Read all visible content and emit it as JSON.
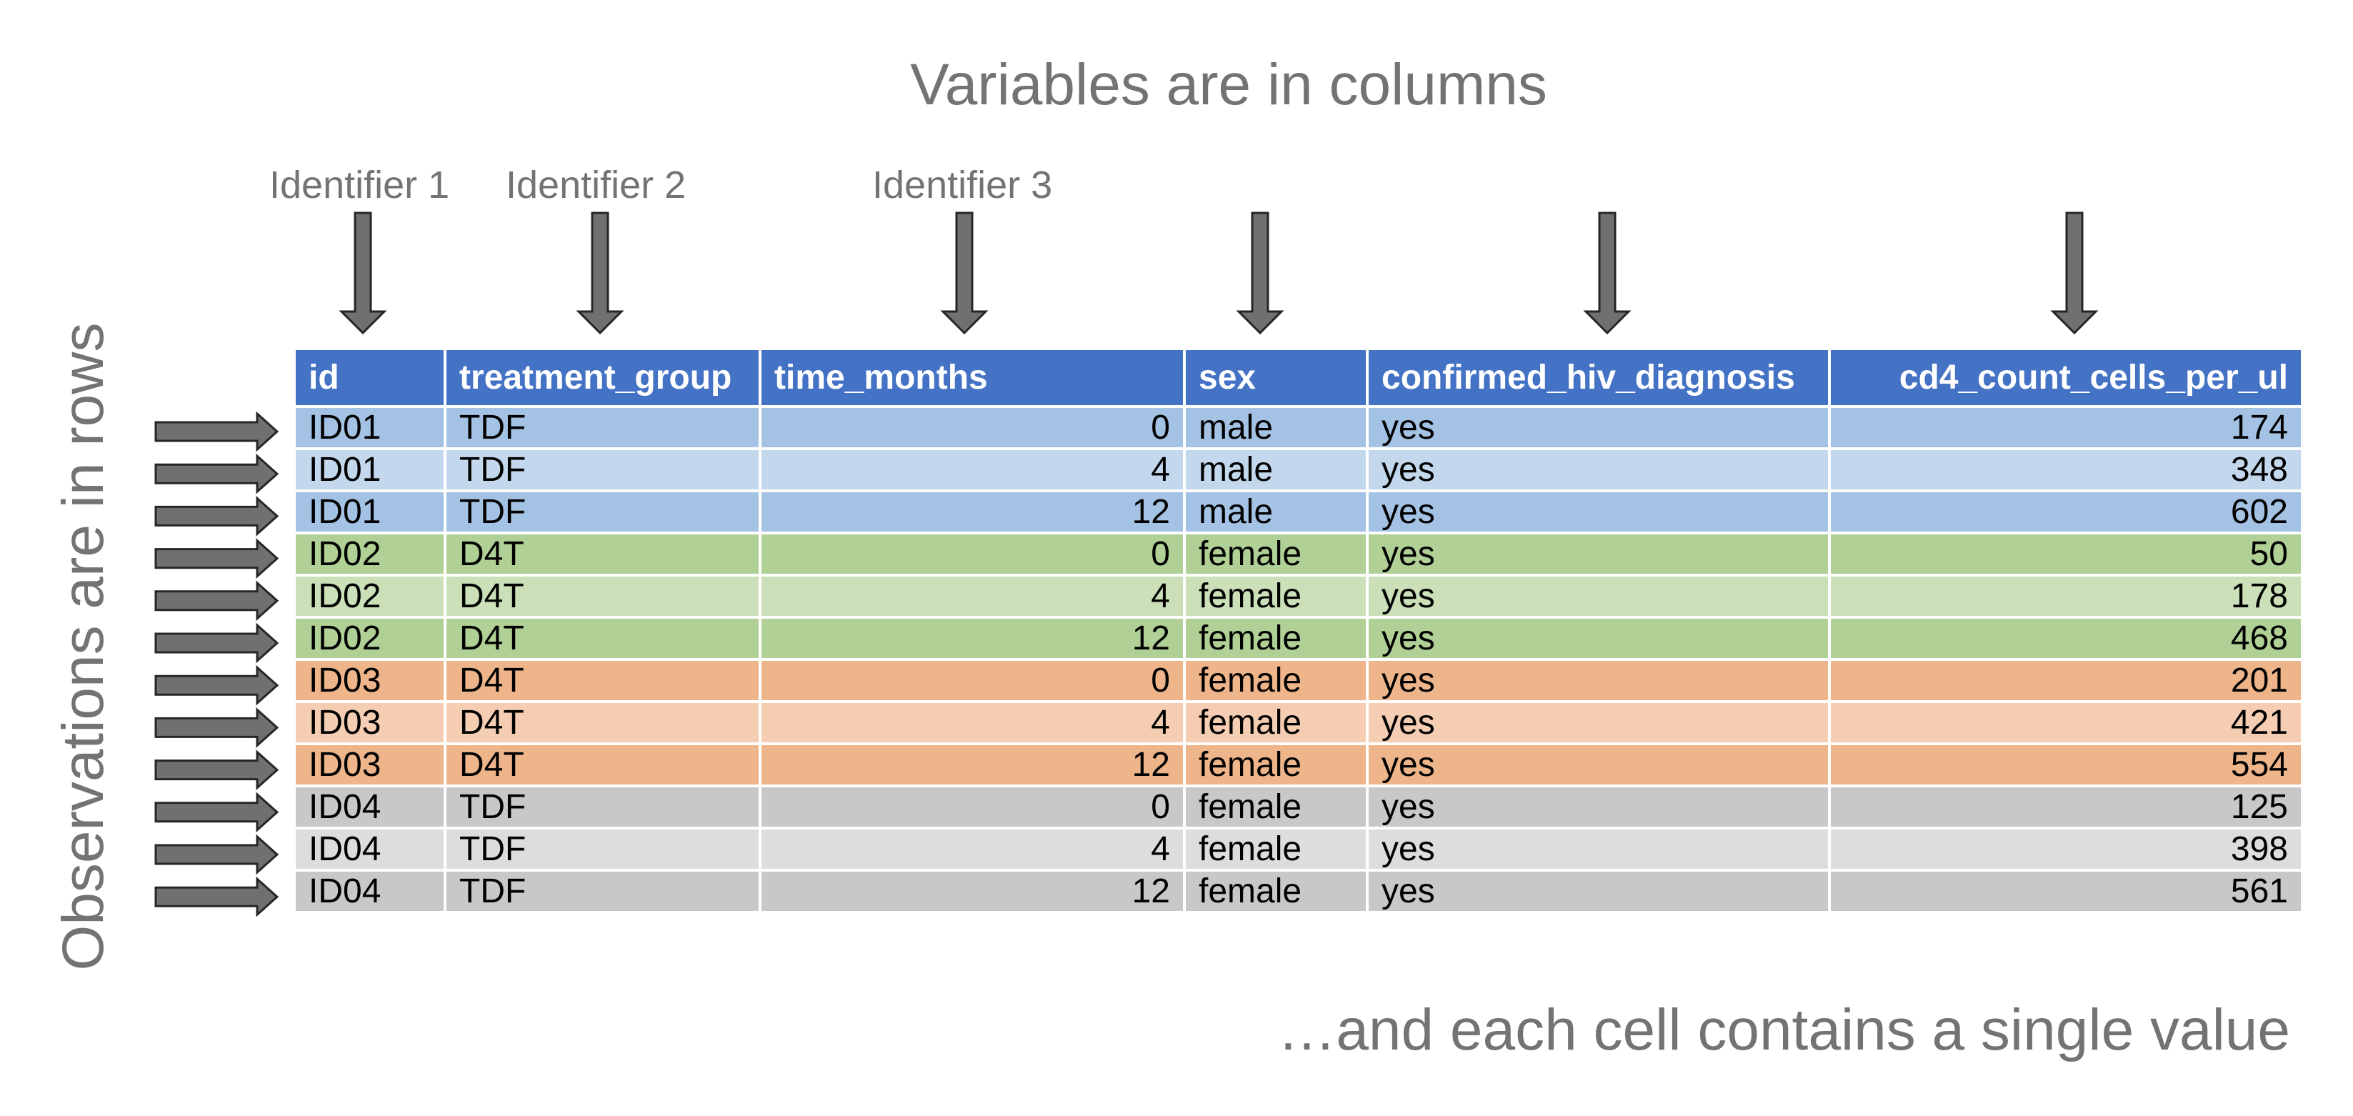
{
  "title": "Variables are in columns",
  "identifier_labels": [
    "Identifier 1",
    "Identifier 2",
    "Identifier 3"
  ],
  "rows_label": "Observations are in rows",
  "footer": "…and each cell contains a single value",
  "colors": {
    "header": "#4472c4",
    "arrow_fill": "#707070",
    "label_gray": "#737373",
    "id01": [
      "#a4c2e4",
      "#c4d8ed"
    ],
    "id02": [
      "#b0d095",
      "#cbe0b8"
    ],
    "id03": [
      "#eeb48a",
      "#f4cdb2"
    ],
    "id04": [
      "#c8c8c8",
      "#dddddd"
    ]
  },
  "table": {
    "columns": [
      "id",
      "treatment_group",
      "time_months",
      "sex",
      "confirmed_hiv_diagnosis",
      "cd4_count_cells_per_ul"
    ],
    "rows": [
      [
        "ID01",
        "TDF",
        "0",
        "male",
        "yes",
        "174"
      ],
      [
        "ID01",
        "TDF",
        "4",
        "male",
        "yes",
        "348"
      ],
      [
        "ID01",
        "TDF",
        "12",
        "male",
        "yes",
        "602"
      ],
      [
        "ID02",
        "D4T",
        "0",
        "female",
        "yes",
        "50"
      ],
      [
        "ID02",
        "D4T",
        "4",
        "female",
        "yes",
        "178"
      ],
      [
        "ID02",
        "D4T",
        "12",
        "female",
        "yes",
        "468"
      ],
      [
        "ID03",
        "D4T",
        "0",
        "female",
        "yes",
        "201"
      ],
      [
        "ID03",
        "D4T",
        "4",
        "female",
        "yes",
        "421"
      ],
      [
        "ID03",
        "D4T",
        "12",
        "female",
        "yes",
        "554"
      ],
      [
        "ID04",
        "TDF",
        "0",
        "female",
        "yes",
        "125"
      ],
      [
        "ID04",
        "TDF",
        "4",
        "female",
        "yes",
        "398"
      ],
      [
        "ID04",
        "TDF",
        "12",
        "female",
        "yes",
        "561"
      ]
    ]
  }
}
